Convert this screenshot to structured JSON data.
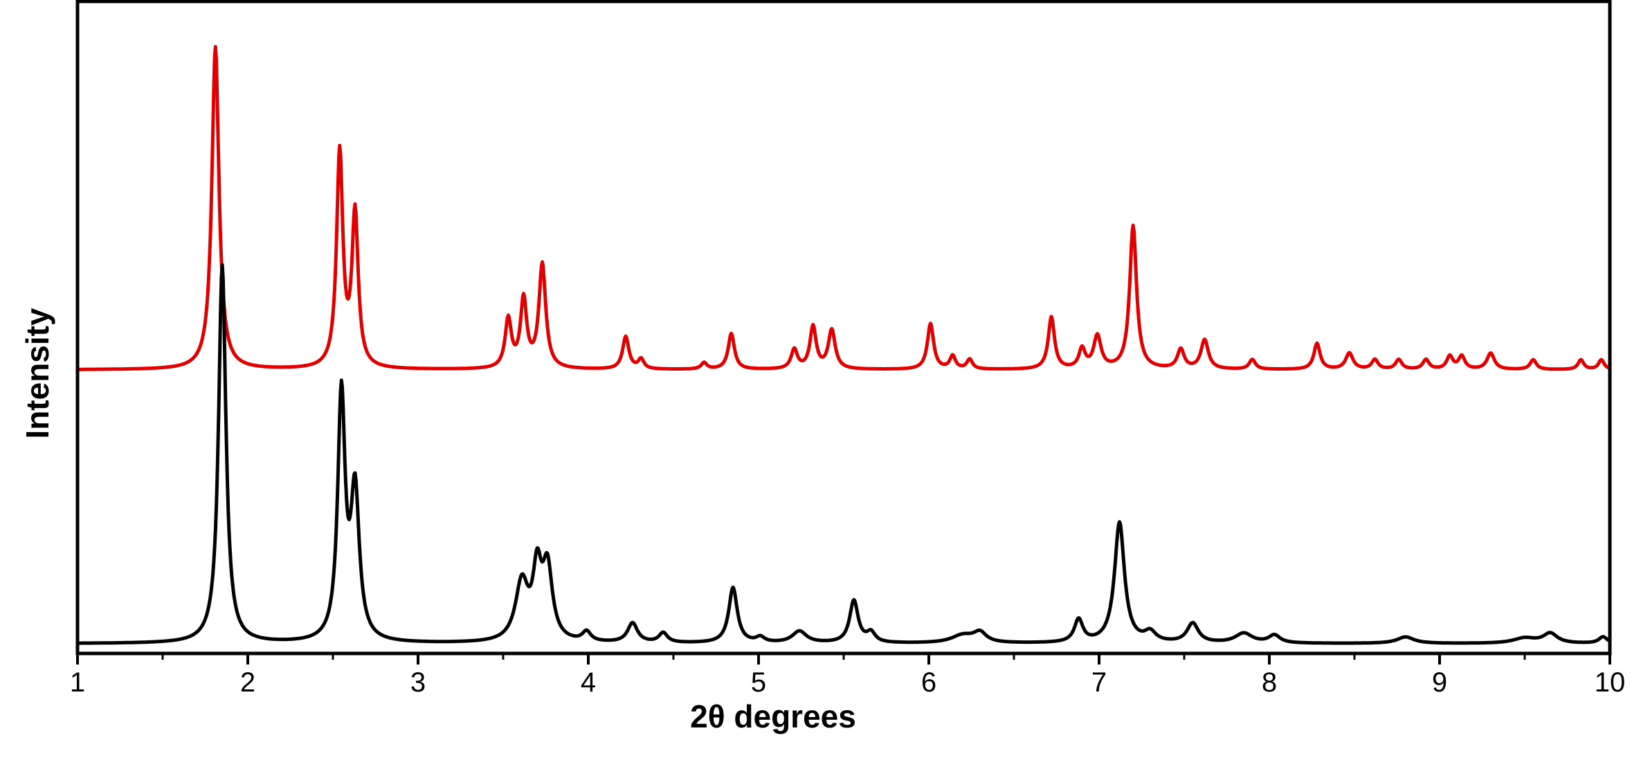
{
  "chart_data": {
    "type": "line",
    "title": "",
    "xlabel": "2θ degrees",
    "ylabel": "Intensity",
    "xlim": [
      1,
      10
    ],
    "ylim": [
      0,
      100
    ],
    "xticks": [
      "1",
      "2",
      "3",
      "4",
      "5",
      "6",
      "7",
      "8",
      "9",
      "10"
    ],
    "grid": false,
    "legend": "none",
    "series": [
      {
        "color": "#e00000",
        "offset": 43.5,
        "peaks": [
          [
            1.81,
            49.5,
            0.025
          ],
          [
            2.54,
            33.0,
            0.022
          ],
          [
            2.63,
            23.5,
            0.022
          ],
          [
            3.53,
            7.5,
            0.022
          ],
          [
            3.62,
            10.5,
            0.022
          ],
          [
            3.73,
            16.0,
            0.024
          ],
          [
            4.22,
            5.0,
            0.022
          ],
          [
            4.31,
            1.5,
            0.02
          ],
          [
            4.68,
            1.0,
            0.02
          ],
          [
            4.84,
            5.5,
            0.022
          ],
          [
            5.21,
            3.0,
            0.022
          ],
          [
            5.32,
            6.5,
            0.022
          ],
          [
            5.43,
            6.0,
            0.024
          ],
          [
            6.01,
            7.0,
            0.022
          ],
          [
            6.14,
            2.0,
            0.02
          ],
          [
            6.24,
            1.5,
            0.02
          ],
          [
            6.72,
            8.0,
            0.022
          ],
          [
            6.9,
            3.0,
            0.022
          ],
          [
            6.99,
            5.0,
            0.026
          ],
          [
            7.2,
            22.0,
            0.024
          ],
          [
            7.48,
            3.0,
            0.024
          ],
          [
            7.62,
            4.5,
            0.026
          ],
          [
            7.9,
            1.5,
            0.022
          ],
          [
            8.28,
            4.0,
            0.022
          ],
          [
            8.47,
            2.5,
            0.026
          ],
          [
            8.62,
            1.5,
            0.022
          ],
          [
            8.76,
            1.5,
            0.022
          ],
          [
            8.92,
            1.5,
            0.022
          ],
          [
            9.06,
            2.0,
            0.022
          ],
          [
            9.13,
            2.0,
            0.022
          ],
          [
            9.3,
            2.5,
            0.026
          ],
          [
            9.55,
            1.5,
            0.022
          ],
          [
            9.83,
            1.5,
            0.02
          ],
          [
            9.95,
            1.5,
            0.02
          ]
        ]
      },
      {
        "color": "#000000",
        "offset": 1.5,
        "peaks": [
          [
            1.85,
            58.0,
            0.026
          ],
          [
            2.55,
            37.5,
            0.026
          ],
          [
            2.63,
            22.5,
            0.03
          ],
          [
            3.61,
            9.0,
            0.045
          ],
          [
            3.7,
            10.0,
            0.03
          ],
          [
            3.76,
            11.0,
            0.035
          ],
          [
            3.99,
            1.5,
            0.03
          ],
          [
            4.26,
            3.0,
            0.035
          ],
          [
            4.44,
            1.5,
            0.03
          ],
          [
            4.85,
            8.5,
            0.03
          ],
          [
            5.01,
            0.8,
            0.03
          ],
          [
            5.24,
            1.8,
            0.05
          ],
          [
            5.56,
            6.5,
            0.03
          ],
          [
            5.66,
            1.5,
            0.03
          ],
          [
            6.2,
            1.2,
            0.08
          ],
          [
            6.3,
            1.5,
            0.045
          ],
          [
            6.88,
            3.5,
            0.03
          ],
          [
            7.12,
            18.5,
            0.035
          ],
          [
            7.3,
            1.5,
            0.04
          ],
          [
            7.55,
            3.0,
            0.04
          ],
          [
            7.85,
            1.5,
            0.06
          ],
          [
            8.03,
            1.2,
            0.04
          ],
          [
            8.8,
            1.0,
            0.06
          ],
          [
            9.5,
            0.8,
            0.08
          ],
          [
            9.65,
            1.5,
            0.05
          ],
          [
            9.96,
            1.0,
            0.03
          ]
        ]
      }
    ]
  }
}
